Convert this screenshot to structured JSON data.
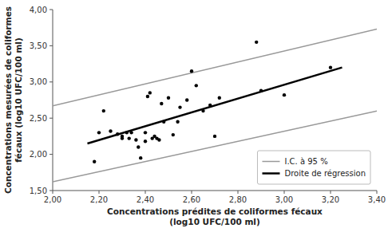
{
  "chart_data": {
    "type": "scatter",
    "xlabel": "Concentrations prédites de coliformes fécaux\n(log10 UFC/100 ml)",
    "ylabel": "Concentrations mesurées de coliformes\nfécaux (log10 UFC/100 ml)",
    "series": [
      {
        "name": "I.C. à 95 %",
        "type": "line",
        "color": "#999999",
        "x": [
          2.0,
          3.4
        ],
        "upper": [
          2.67,
          3.73
        ],
        "lower": [
          1.62,
          2.6
        ]
      },
      {
        "name": "Droite de régression",
        "type": "line",
        "color": "#000000",
        "x": [
          2.15,
          3.25
        ],
        "values": [
          2.15,
          3.2
        ]
      },
      {
        "type": "scatter",
        "color": "#000000",
        "x": [
          2.18,
          2.2,
          2.22,
          2.25,
          2.28,
          2.3,
          2.3,
          2.32,
          2.33,
          2.34,
          2.36,
          2.37,
          2.38,
          2.4,
          2.4,
          2.41,
          2.42,
          2.43,
          2.44,
          2.45,
          2.46,
          2.47,
          2.48,
          2.5,
          2.52,
          2.54,
          2.55,
          2.58,
          2.6,
          2.62,
          2.65,
          2.68,
          2.7,
          2.72,
          2.88,
          2.9,
          3.0,
          3.2
        ],
        "values": [
          1.9,
          2.3,
          2.6,
          2.32,
          2.28,
          2.22,
          2.25,
          2.3,
          2.22,
          2.3,
          2.2,
          2.1,
          1.95,
          2.18,
          2.3,
          2.8,
          2.85,
          2.22,
          2.25,
          2.22,
          2.2,
          2.7,
          2.45,
          2.78,
          2.27,
          2.45,
          2.65,
          2.75,
          3.15,
          2.95,
          2.6,
          2.68,
          2.25,
          2.78,
          3.55,
          2.88,
          2.82,
          3.2
        ]
      }
    ],
    "xlim": [
      2.0,
      3.4
    ],
    "ylim": [
      1.5,
      4.0
    ],
    "xticks": [
      {
        "value": 2.0,
        "label": "2,00"
      },
      {
        "value": 2.2,
        "label": "2,20"
      },
      {
        "value": 2.4,
        "label": "2,40"
      },
      {
        "value": 2.6,
        "label": "2,60"
      },
      {
        "value": 2.8,
        "label": "2,80"
      },
      {
        "value": 3.0,
        "label": "3,00"
      },
      {
        "value": 3.2,
        "label": "3,20"
      },
      {
        "value": 3.4,
        "label": "3,40"
      }
    ],
    "yticks": [
      {
        "value": 1.5,
        "label": "1,50"
      },
      {
        "value": 2.0,
        "label": "2,00"
      },
      {
        "value": 2.5,
        "label": "2,50"
      },
      {
        "value": 3.0,
        "label": "3,00"
      },
      {
        "value": 3.5,
        "label": "3,50"
      },
      {
        "value": 4.0,
        "label": "4,00"
      }
    ],
    "legend": "lower right",
    "grid": false
  }
}
